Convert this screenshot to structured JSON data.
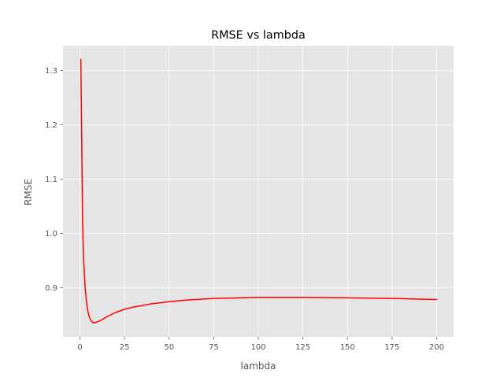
{
  "chart_data": {
    "type": "line",
    "title": "RMSE vs lambda",
    "xlabel": "lambda",
    "ylabel": "RMSE",
    "xlim": [
      -9.5,
      209.5
    ],
    "ylim": [
      0.809,
      1.346
    ],
    "x_ticks": [
      0,
      25,
      50,
      75,
      100,
      125,
      150,
      175,
      200
    ],
    "x_tick_labels": [
      "0",
      "25",
      "50",
      "75",
      "100",
      "125",
      "150",
      "175",
      "200"
    ],
    "y_ticks": [
      0.9,
      1.0,
      1.1,
      1.2,
      1.3
    ],
    "y_tick_labels": [
      "0.9",
      "1.0",
      "1.1",
      "1.2",
      "1.3"
    ],
    "grid": true,
    "colors": {
      "background": "#e5e5e5",
      "grid": "#ffffff",
      "line": "#ff0000",
      "text": "#555555",
      "title": "#000000"
    },
    "series": [
      {
        "x": [
          0.5,
          1,
          1.5,
          2,
          3,
          4,
          5,
          6,
          7,
          8,
          9,
          10,
          12,
          15,
          20,
          25,
          30,
          40,
          50,
          60,
          75,
          90,
          100,
          110,
          125,
          150,
          175,
          200
        ],
        "values": [
          1.321,
          1.17,
          1.02,
          0.955,
          0.895,
          0.865,
          0.848,
          0.84,
          0.836,
          0.835,
          0.836,
          0.837,
          0.84,
          0.846,
          0.854,
          0.86,
          0.864,
          0.87,
          0.874,
          0.877,
          0.88,
          0.881,
          0.882,
          0.882,
          0.882,
          0.881,
          0.88,
          0.878
        ]
      }
    ]
  }
}
